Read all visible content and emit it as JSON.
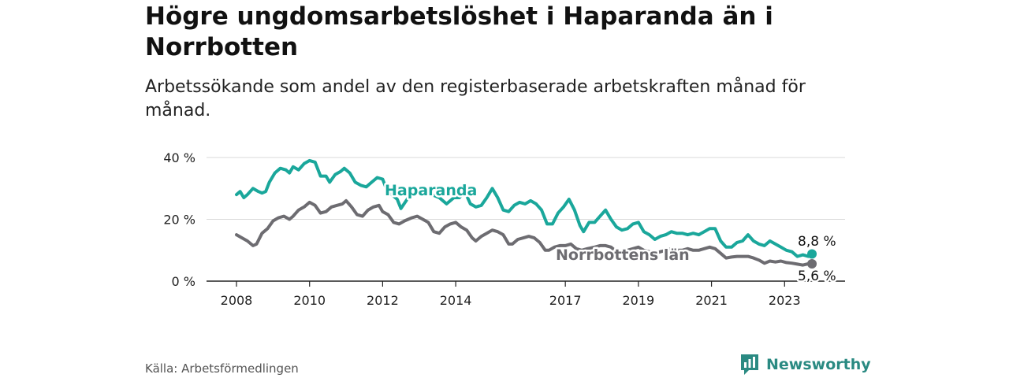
{
  "header": {
    "title": "Högre ungdomsarbetslöshet i Haparanda än i Norrbotten",
    "subtitle": "Arbetssökande som andel av den registerbaserade arbetskraften månad för månad."
  },
  "footer": {
    "source": "Källa: Arbetsförmedlingen",
    "brand": "Newsworthy"
  },
  "colors": {
    "haparanda": "#1aa79b",
    "norrbotten": "#6d6c71",
    "grid": "#d9d9d9",
    "brand": "#2a8a82"
  },
  "chart_data": {
    "type": "line",
    "title": "Högre ungdomsarbetslöshet i Haparanda än i Norrbotten",
    "xlabel": "",
    "ylabel": "",
    "xlim": [
      2008.0,
      2023.9
    ],
    "ylim": [
      0,
      40
    ],
    "y_ticks": [
      0,
      20,
      40
    ],
    "y_tick_labels": [
      "0 %",
      "20 %",
      "40 %"
    ],
    "x_ticks": [
      2008,
      2010,
      2012,
      2014,
      2017,
      2019,
      2021,
      2023
    ],
    "x_tick_labels": [
      "2008",
      "2010",
      "2012",
      "2014",
      "2017",
      "2019",
      "2021",
      "2023"
    ],
    "grid": true,
    "series": [
      {
        "name": "Haparanda",
        "label": "Haparanda",
        "end_label": "8,8 %",
        "points": [
          [
            2008.0,
            28
          ],
          [
            2008.1,
            29
          ],
          [
            2008.2,
            27
          ],
          [
            2008.3,
            28
          ],
          [
            2008.45,
            30
          ],
          [
            2008.6,
            29
          ],
          [
            2008.7,
            28.5
          ],
          [
            2008.8,
            29
          ],
          [
            2008.9,
            32
          ],
          [
            2009.05,
            35
          ],
          [
            2009.2,
            36.5
          ],
          [
            2009.35,
            36
          ],
          [
            2009.45,
            35
          ],
          [
            2009.55,
            37
          ],
          [
            2009.7,
            36
          ],
          [
            2009.85,
            38
          ],
          [
            2010.0,
            39
          ],
          [
            2010.15,
            38.5
          ],
          [
            2010.3,
            34
          ],
          [
            2010.45,
            34
          ],
          [
            2010.55,
            32
          ],
          [
            2010.7,
            34.5
          ],
          [
            2010.85,
            35.5
          ],
          [
            2010.95,
            36.5
          ],
          [
            2011.1,
            35
          ],
          [
            2011.25,
            32
          ],
          [
            2011.4,
            31
          ],
          [
            2011.55,
            30.5
          ],
          [
            2011.7,
            32
          ],
          [
            2011.85,
            33.5
          ],
          [
            2012.0,
            33
          ],
          [
            2012.1,
            30
          ],
          [
            2012.25,
            28
          ],
          [
            2012.4,
            26.5
          ],
          [
            2012.5,
            23.5
          ],
          [
            2012.7,
            27
          ],
          [
            2012.9,
            28
          ],
          [
            2013.1,
            29
          ],
          [
            2013.35,
            28
          ],
          [
            2013.55,
            27
          ],
          [
            2013.75,
            25
          ],
          [
            2013.95,
            27
          ],
          [
            2014.1,
            27
          ],
          [
            2014.25,
            29
          ],
          [
            2014.4,
            25
          ],
          [
            2014.55,
            24
          ],
          [
            2014.7,
            24.5
          ],
          [
            2014.85,
            27
          ],
          [
            2015.0,
            30
          ],
          [
            2015.15,
            27
          ],
          [
            2015.3,
            23
          ],
          [
            2015.45,
            22.5
          ],
          [
            2015.6,
            24.5
          ],
          [
            2015.75,
            25.5
          ],
          [
            2015.9,
            25
          ],
          [
            2016.05,
            26
          ],
          [
            2016.2,
            25
          ],
          [
            2016.35,
            23
          ],
          [
            2016.5,
            18.5
          ],
          [
            2016.65,
            18.5
          ],
          [
            2016.8,
            22
          ],
          [
            2016.95,
            24
          ],
          [
            2017.1,
            26.5
          ],
          [
            2017.25,
            23
          ],
          [
            2017.4,
            18
          ],
          [
            2017.5,
            16
          ],
          [
            2017.65,
            19
          ],
          [
            2017.8,
            19
          ],
          [
            2017.95,
            21
          ],
          [
            2018.1,
            23
          ],
          [
            2018.25,
            20
          ],
          [
            2018.4,
            17.5
          ],
          [
            2018.55,
            16.5
          ],
          [
            2018.7,
            17
          ],
          [
            2018.85,
            18.5
          ],
          [
            2019.0,
            19
          ],
          [
            2019.15,
            16
          ],
          [
            2019.3,
            15
          ],
          [
            2019.45,
            13.5
          ],
          [
            2019.6,
            14.5
          ],
          [
            2019.75,
            15
          ],
          [
            2019.9,
            16
          ],
          [
            2020.05,
            15.5
          ],
          [
            2020.2,
            15.5
          ],
          [
            2020.35,
            15
          ],
          [
            2020.5,
            15.5
          ],
          [
            2020.65,
            15
          ],
          [
            2020.8,
            16
          ],
          [
            2020.95,
            17
          ],
          [
            2021.1,
            17
          ],
          [
            2021.25,
            13
          ],
          [
            2021.4,
            11
          ],
          [
            2021.55,
            11
          ],
          [
            2021.7,
            12.5
          ],
          [
            2021.85,
            13
          ],
          [
            2022.0,
            15
          ],
          [
            2022.15,
            13
          ],
          [
            2022.3,
            12
          ],
          [
            2022.45,
            11.5
          ],
          [
            2022.6,
            13
          ],
          [
            2022.75,
            12
          ],
          [
            2022.9,
            11
          ],
          [
            2023.05,
            10
          ],
          [
            2023.2,
            9.5
          ],
          [
            2023.35,
            8
          ],
          [
            2023.5,
            8.5
          ],
          [
            2023.65,
            8
          ],
          [
            2023.75,
            8.8
          ]
        ]
      },
      {
        "name": "Norrbottens län",
        "label": "Norrbottens län",
        "end_label": "5,6 %",
        "points": [
          [
            2008.0,
            15
          ],
          [
            2008.15,
            14
          ],
          [
            2008.3,
            13
          ],
          [
            2008.45,
            11.5
          ],
          [
            2008.55,
            12
          ],
          [
            2008.7,
            15.5
          ],
          [
            2008.85,
            17
          ],
          [
            2009.0,
            19.5
          ],
          [
            2009.15,
            20.5
          ],
          [
            2009.3,
            21
          ],
          [
            2009.45,
            20
          ],
          [
            2009.55,
            21
          ],
          [
            2009.7,
            23
          ],
          [
            2009.85,
            24
          ],
          [
            2010.0,
            25.5
          ],
          [
            2010.15,
            24.5
          ],
          [
            2010.3,
            22
          ],
          [
            2010.45,
            22.5
          ],
          [
            2010.6,
            24
          ],
          [
            2010.75,
            24.5
          ],
          [
            2010.9,
            25
          ],
          [
            2011.0,
            26
          ],
          [
            2011.15,
            24
          ],
          [
            2011.3,
            21.5
          ],
          [
            2011.45,
            21
          ],
          [
            2011.6,
            23
          ],
          [
            2011.75,
            24
          ],
          [
            2011.9,
            24.5
          ],
          [
            2012.0,
            22.5
          ],
          [
            2012.15,
            21.5
          ],
          [
            2012.3,
            19
          ],
          [
            2012.45,
            18.5
          ],
          [
            2012.6,
            19.5
          ],
          [
            2012.8,
            20.5
          ],
          [
            2012.95,
            21
          ],
          [
            2013.1,
            20
          ],
          [
            2013.25,
            19
          ],
          [
            2013.4,
            16
          ],
          [
            2013.55,
            15.5
          ],
          [
            2013.7,
            17.5
          ],
          [
            2013.85,
            18.5
          ],
          [
            2014.0,
            19
          ],
          [
            2014.15,
            17.5
          ],
          [
            2014.3,
            16.5
          ],
          [
            2014.45,
            14
          ],
          [
            2014.55,
            13
          ],
          [
            2014.7,
            14.5
          ],
          [
            2014.85,
            15.5
          ],
          [
            2015.0,
            16.5
          ],
          [
            2015.15,
            16
          ],
          [
            2015.3,
            15
          ],
          [
            2015.45,
            12
          ],
          [
            2015.55,
            12
          ],
          [
            2015.7,
            13.5
          ],
          [
            2015.85,
            14
          ],
          [
            2016.0,
            14.5
          ],
          [
            2016.15,
            14
          ],
          [
            2016.3,
            12.5
          ],
          [
            2016.45,
            10
          ],
          [
            2016.55,
            10
          ],
          [
            2016.7,
            11
          ],
          [
            2016.85,
            11.5
          ],
          [
            2017.0,
            11.5
          ],
          [
            2017.15,
            12
          ],
          [
            2017.3,
            10.5
          ],
          [
            2017.45,
            10
          ],
          [
            2017.6,
            10.5
          ],
          [
            2017.8,
            11
          ],
          [
            2017.95,
            11.5
          ],
          [
            2018.1,
            11.5
          ],
          [
            2018.25,
            11
          ],
          [
            2018.4,
            9.5
          ],
          [
            2018.55,
            9
          ],
          [
            2018.7,
            10
          ],
          [
            2018.85,
            10.5
          ],
          [
            2019.0,
            11
          ],
          [
            2019.15,
            10
          ],
          [
            2019.3,
            9.5
          ],
          [
            2019.45,
            9
          ],
          [
            2019.6,
            9.5
          ],
          [
            2019.75,
            10
          ],
          [
            2019.9,
            10.5
          ],
          [
            2020.05,
            10
          ],
          [
            2020.2,
            10
          ],
          [
            2020.35,
            10.5
          ],
          [
            2020.5,
            10
          ],
          [
            2020.65,
            10
          ],
          [
            2020.8,
            10.5
          ],
          [
            2020.95,
            11
          ],
          [
            2021.1,
            10.5
          ],
          [
            2021.25,
            9
          ],
          [
            2021.4,
            7.5
          ],
          [
            2021.55,
            7.8
          ],
          [
            2021.7,
            8
          ],
          [
            2021.85,
            8
          ],
          [
            2022.0,
            8
          ],
          [
            2022.15,
            7.5
          ],
          [
            2022.3,
            6.8
          ],
          [
            2022.45,
            5.8
          ],
          [
            2022.6,
            6.5
          ],
          [
            2022.75,
            6.2
          ],
          [
            2022.9,
            6.5
          ],
          [
            2023.05,
            6
          ],
          [
            2023.2,
            5.8
          ],
          [
            2023.35,
            5.5
          ],
          [
            2023.5,
            5.2
          ],
          [
            2023.65,
            5.6
          ],
          [
            2023.75,
            5.6
          ]
        ]
      }
    ]
  }
}
